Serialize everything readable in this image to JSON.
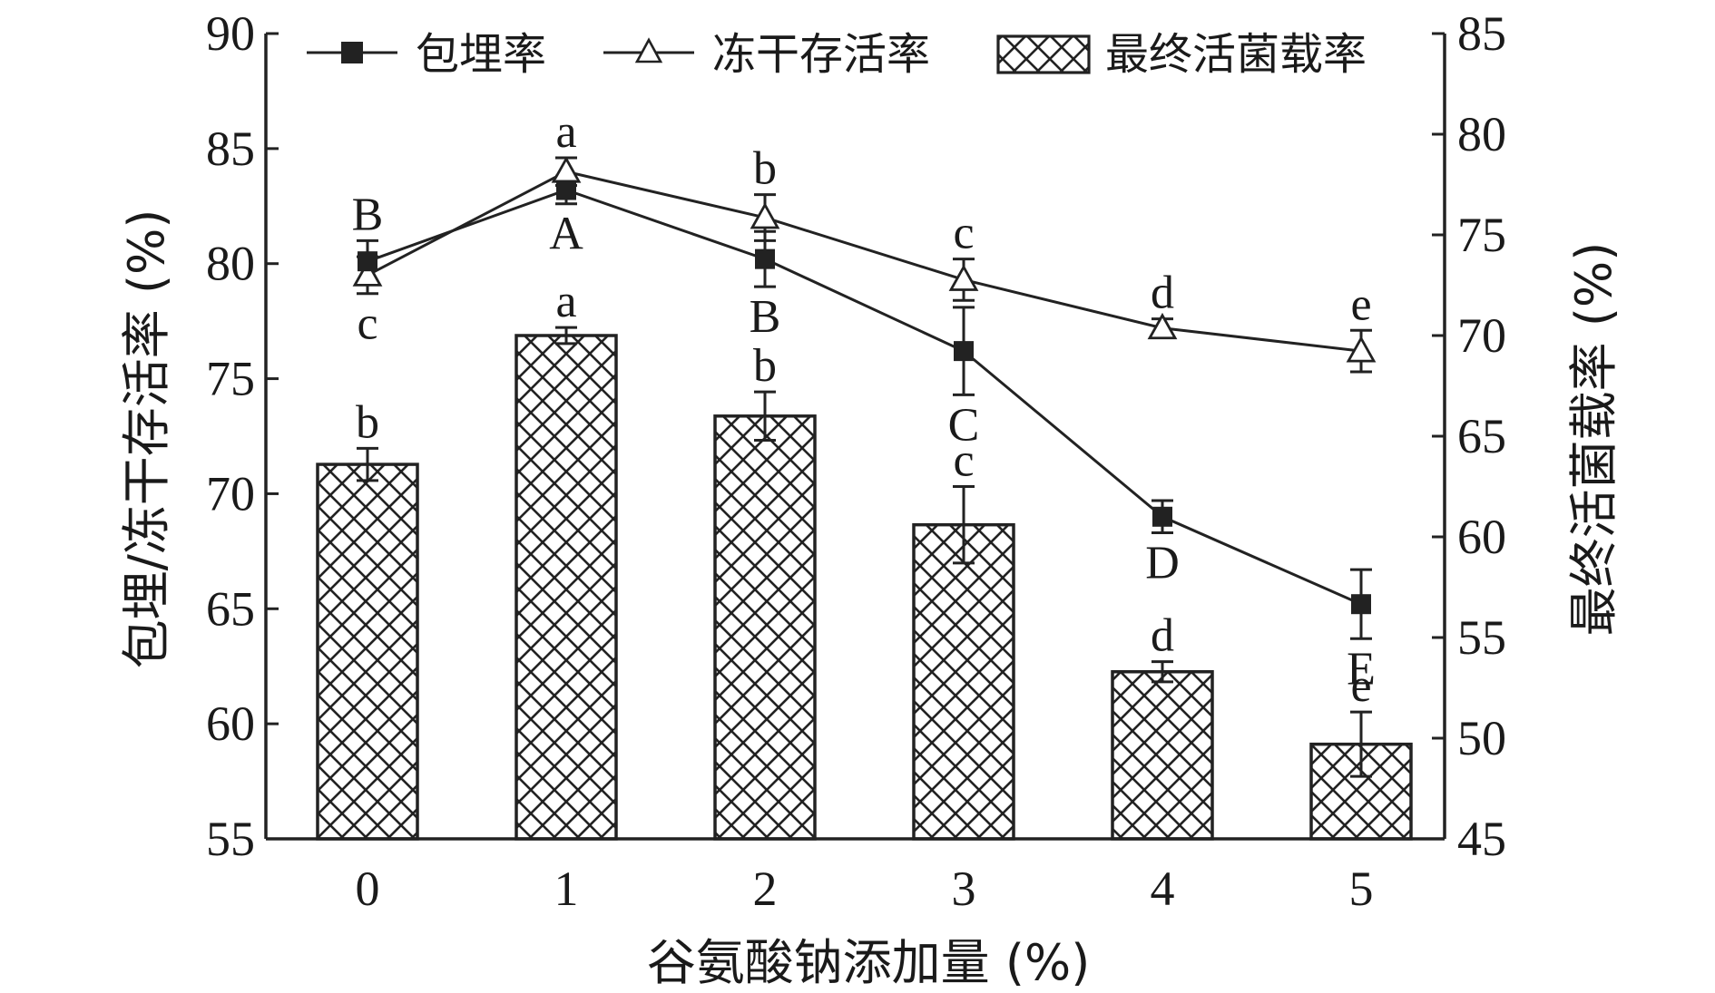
{
  "chart_data": {
    "type": "bar",
    "xlabel": "谷氨酸钠添加量 (%)",
    "ylabel_left": "包埋/冻干存活率 (%)",
    "ylabel_right": "最终活菌载率 (%)",
    "categories": [
      "0",
      "1",
      "2",
      "3",
      "4",
      "5"
    ],
    "ylim_left": [
      55,
      90
    ],
    "yticks_left": [
      "55",
      "60",
      "65",
      "70",
      "75",
      "80",
      "85",
      "90"
    ],
    "ylim_right": [
      45,
      85
    ],
    "yticks_right": [
      "45",
      "50",
      "55",
      "60",
      "65",
      "70",
      "75",
      "80",
      "85"
    ],
    "grid": false,
    "legend_position": "top",
    "series": [
      {
        "name": "包埋率",
        "type": "line",
        "axis": "left",
        "marker": "filled-square",
        "values": [
          80.1,
          83.2,
          80.2,
          76.2,
          69.0,
          65.2
        ],
        "errors": [
          0.9,
          0.6,
          1.2,
          1.9,
          0.7,
          1.5
        ],
        "labels": [
          "B",
          "A",
          "B",
          "C",
          "D",
          "E"
        ]
      },
      {
        "name": "冻干存活率",
        "type": "line",
        "axis": "left",
        "marker": "open-triangle",
        "values": [
          79.5,
          84.0,
          82.0,
          79.3,
          77.2,
          76.2
        ],
        "errors": [
          0.8,
          0.6,
          1.0,
          0.9,
          0.4,
          0.9
        ],
        "labels": [
          "c",
          "a",
          "b",
          "c",
          "d",
          "e"
        ]
      },
      {
        "name": "最终活菌载率",
        "type": "bar",
        "axis": "right",
        "pattern": "crosshatch",
        "values": [
          63.6,
          70.0,
          66.0,
          60.6,
          53.3,
          49.7
        ],
        "errors": [
          0.8,
          0.4,
          1.2,
          1.9,
          0.5,
          1.6
        ],
        "labels": [
          "b",
          "a",
          "b",
          "c",
          "d",
          "e"
        ]
      }
    ]
  }
}
